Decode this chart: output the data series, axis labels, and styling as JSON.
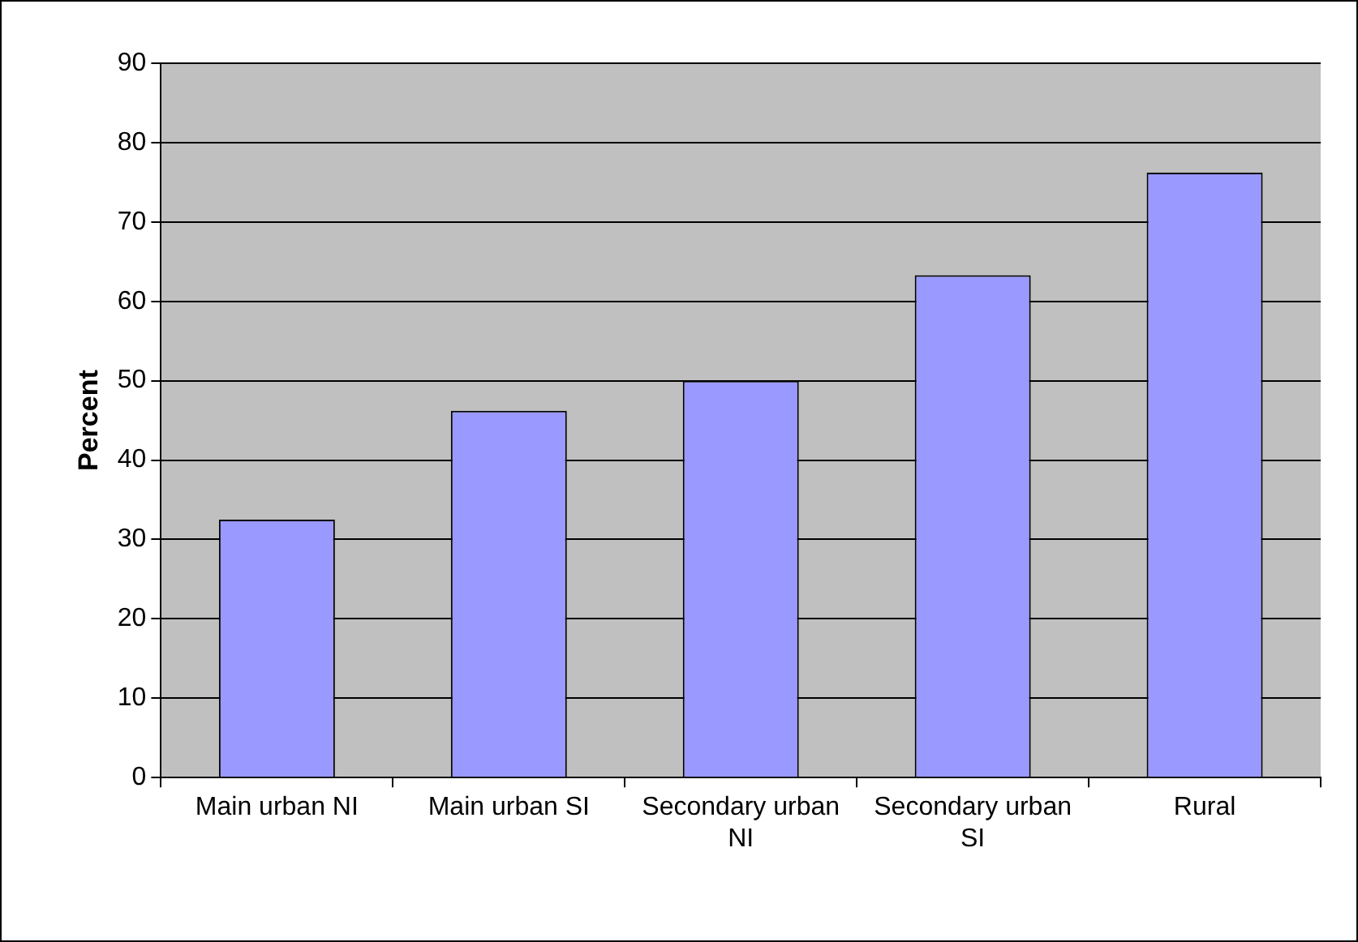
{
  "chart_data": {
    "type": "bar",
    "ylabel": "Percent",
    "categories": [
      "Main urban NI",
      "Main urban SI",
      "Secondary urban NI",
      "Secondary urban SI",
      "Rural"
    ],
    "values": [
      32.5,
      46.2,
      50,
      63.3,
      76.2
    ],
    "color": "#9999ff",
    "ylim": [
      0,
      90
    ],
    "yticks": [
      0,
      10,
      20,
      30,
      40,
      50,
      60,
      70,
      80,
      90
    ],
    "grid": "y",
    "legend": false
  }
}
